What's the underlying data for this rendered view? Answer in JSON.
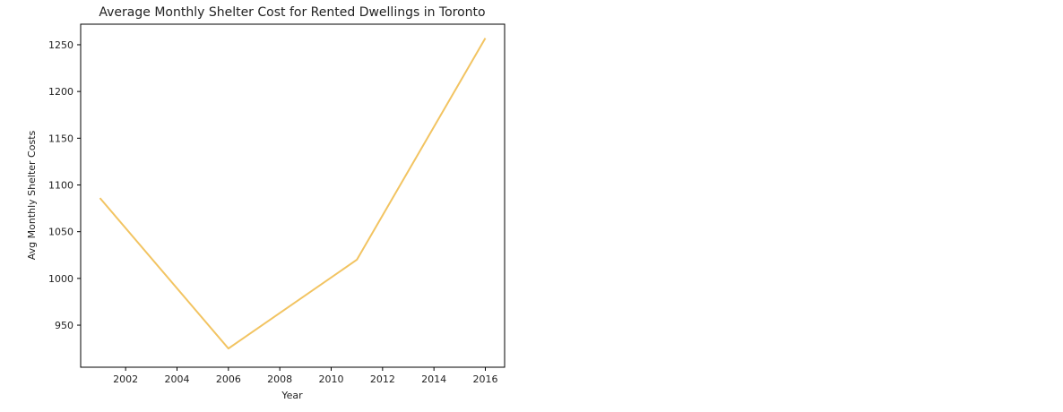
{
  "chart_data": {
    "type": "line",
    "title": "Average Monthly Shelter Cost for Rented Dwellings in Toronto",
    "xlabel": "Year",
    "ylabel": "Avg Monthly Shelter Costs",
    "xlim": [
      2000.25,
      2016.75
    ],
    "ylim": [
      905,
      1272
    ],
    "x_ticks": [
      2002,
      2004,
      2006,
      2008,
      2010,
      2012,
      2014,
      2016
    ],
    "y_ticks": [
      950,
      1000,
      1050,
      1100,
      1150,
      1200,
      1250
    ],
    "grid": false,
    "series": [
      {
        "color": "#f2c462",
        "x": [
          2001,
          2006,
          2011,
          2016
        ],
        "y": [
          1086,
          925,
          1020,
          1257
        ]
      }
    ]
  }
}
